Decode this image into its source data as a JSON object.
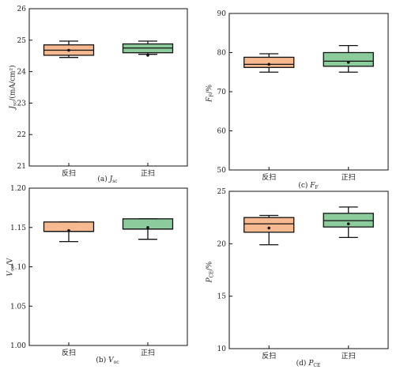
{
  "chart_data": [
    {
      "id": "a",
      "type": "box",
      "caption": "(a) J_sc",
      "caption_prefix": "(a)",
      "caption_symbol": "J",
      "caption_sub": "sc",
      "ylabel": "J_sc/(mA/cm²)",
      "ylabel_symbol": "J",
      "ylabel_sub": "sc",
      "ylabel_unit": "/(mA/cm²)",
      "ylim": [
        21,
        26
      ],
      "yticks": [
        "21",
        "22",
        "23",
        "24",
        "25",
        "26"
      ],
      "categories": [
        "反扫",
        "正扫"
      ],
      "boxes": [
        {
          "q1": 24.52,
          "median": 24.68,
          "q3": 24.85,
          "whisker_low": 24.45,
          "whisker_high": 24.97,
          "mean": 24.68
        },
        {
          "q1": 24.6,
          "median": 24.75,
          "q3": 24.88,
          "whisker_low": 24.55,
          "whisker_high": 24.97,
          "mean": 24.52
        }
      ]
    },
    {
      "id": "c",
      "type": "box",
      "caption": "(c) F_F",
      "caption_prefix": "(c)",
      "caption_symbol": "F",
      "caption_sub": "F",
      "ylabel": "F_F/%",
      "ylabel_symbol": "F",
      "ylabel_sub": "F",
      "ylabel_unit": "/%",
      "ylim": [
        50,
        90
      ],
      "yticks": [
        "50",
        "60",
        "70",
        "80",
        "90"
      ],
      "categories": [
        "反扫",
        "正扫"
      ],
      "boxes": [
        {
          "q1": 76.2,
          "median": 77.0,
          "q3": 78.8,
          "whisker_low": 75.0,
          "whisker_high": 79.7,
          "mean": 77.0
        },
        {
          "q1": 76.5,
          "median": 77.8,
          "q3": 80.0,
          "whisker_low": 75.0,
          "whisker_high": 81.8,
          "mean": 77.5
        }
      ]
    },
    {
      "id": "b",
      "type": "box",
      "caption": "(b) V_oc",
      "caption_prefix": "(b)",
      "caption_symbol": "V",
      "caption_sub": "oc",
      "ylabel": "V_oc/V",
      "ylabel_symbol": "V",
      "ylabel_sub": "oc",
      "ylabel_unit": "/V",
      "ylim": [
        1.0,
        1.2
      ],
      "yticks": [
        "1.00",
        "1.05",
        "1.10",
        "1.15",
        "1.20"
      ],
      "categories": [
        "反扫",
        "正扫"
      ],
      "boxes": [
        {
          "q1": 1.145,
          "median": 1.145,
          "q3": 1.157,
          "whisker_low": 1.132,
          "whisker_high": 1.157,
          "mean": 1.146
        },
        {
          "q1": 1.148,
          "median": 1.148,
          "q3": 1.161,
          "whisker_low": 1.135,
          "whisker_high": 1.161,
          "mean": 1.15
        }
      ]
    },
    {
      "id": "d",
      "type": "box",
      "caption": "(d) P_CE",
      "caption_prefix": "(d)",
      "caption_symbol": "P",
      "caption_sub": "CE",
      "ylabel": "P_CE/%",
      "ylabel_symbol": "P",
      "ylabel_sub": "CE",
      "ylabel_unit": "/%",
      "ylim": [
        10,
        25
      ],
      "yticks": [
        "10",
        "15",
        "20",
        "25"
      ],
      "categories": [
        "反扫",
        "正扫"
      ],
      "boxes": [
        {
          "q1": 21.1,
          "median": 21.9,
          "q3": 22.5,
          "whisker_low": 19.9,
          "whisker_high": 22.7,
          "mean": 21.5
        },
        {
          "q1": 21.6,
          "median": 22.2,
          "q3": 22.9,
          "whisker_low": 20.6,
          "whisker_high": 23.5,
          "mean": 21.9
        }
      ]
    }
  ],
  "colors": {
    "series": [
      "#f7b98f",
      "#8ccc9c"
    ],
    "stroke": "#111111"
  }
}
